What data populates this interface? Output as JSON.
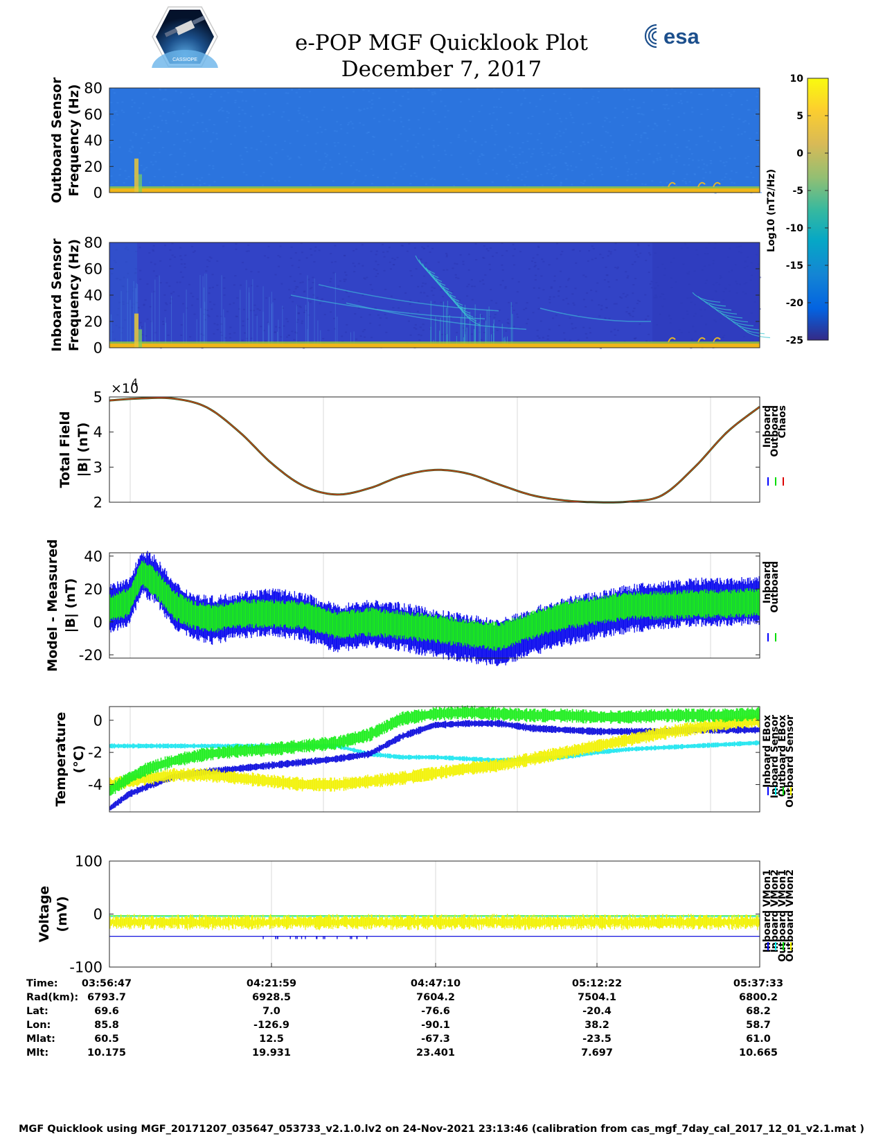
{
  "header": {
    "title": "e-POP MGF Quicklook Plot",
    "date": "December 7, 2017",
    "mission_logo_text": "CASSIOPE",
    "agency_logo_text": "esa"
  },
  "colorbar": {
    "label": "Log10 (nT2/Hz)",
    "ticks": [
      10,
      5,
      0,
      -5,
      -10,
      -15,
      -20,
      -25
    ],
    "range": [
      -25,
      10
    ]
  },
  "chart_data": [
    {
      "id": "outboard-spectrogram",
      "type": "heatmap",
      "ylabel": [
        "Outboard Sensor",
        "Frequency (Hz)"
      ],
      "ylim": [
        0,
        80
      ],
      "yticks": [
        0,
        20,
        40,
        60,
        80
      ],
      "background_level": -15
    },
    {
      "id": "inboard-spectrogram",
      "type": "heatmap",
      "ylabel": [
        "Inboard Sensor",
        "Frequency (Hz)"
      ],
      "ylim": [
        0,
        80
      ],
      "yticks": [
        0,
        20,
        40,
        60,
        80
      ],
      "background_level": -21
    },
    {
      "id": "total-field",
      "type": "line",
      "ylabel": [
        "Total Field",
        "|B| (nT)"
      ],
      "ylim": [
        2,
        5
      ],
      "yticks": [
        2,
        3,
        4,
        5
      ],
      "exponent_label": "×10",
      "exponent_power": "4",
      "legend": [
        "Inboard",
        "Outboard",
        "Chaos"
      ],
      "legend_colors": [
        "#0000ff",
        "#00dd00",
        "#dd0000"
      ],
      "x": [
        0,
        0.05,
        0.1,
        0.15,
        0.2,
        0.25,
        0.3,
        0.35,
        0.4,
        0.45,
        0.5,
        0.55,
        0.6,
        0.65,
        0.7,
        0.75,
        0.8,
        0.85,
        0.9,
        0.95,
        1.0
      ],
      "series": [
        {
          "name": "Chaos",
          "values": [
            4.9,
            4.96,
            4.95,
            4.7,
            4.0,
            3.1,
            2.45,
            2.22,
            2.4,
            2.75,
            2.92,
            2.82,
            2.5,
            2.2,
            2.05,
            2.0,
            2.02,
            2.2,
            3.0,
            4.0,
            4.72
          ]
        }
      ]
    },
    {
      "id": "model-measured",
      "type": "line",
      "ylabel": [
        "Model - Measured",
        "|B| (nT)"
      ],
      "ylim": [
        -22,
        42
      ],
      "yticks": [
        -20,
        0,
        20,
        40
      ],
      "legend": [
        "Inboard",
        "Outboard"
      ],
      "legend_colors": [
        "#0000ff",
        "#00dd00"
      ],
      "x": [
        0,
        0.03,
        0.05,
        0.07,
        0.1,
        0.13,
        0.16,
        0.2,
        0.25,
        0.3,
        0.35,
        0.4,
        0.45,
        0.5,
        0.55,
        0.6,
        0.65,
        0.7,
        0.75,
        0.8,
        0.85,
        0.9,
        0.95,
        1.0
      ],
      "series": [
        {
          "name": "Inboard",
          "values": [
            8,
            12,
            30,
            26,
            10,
            3,
            1,
            4,
            6,
            3,
            -4,
            -1,
            -3,
            -7,
            -10,
            -13,
            -6,
            0,
            4,
            8,
            10,
            12,
            12,
            13
          ]
        },
        {
          "name": "Outboard",
          "values": [
            8,
            12,
            30,
            24,
            10,
            4,
            2,
            5,
            5,
            4,
            -2,
            0,
            -2,
            -4,
            -7,
            -9,
            -2,
            4,
            7,
            10,
            10,
            11,
            11,
            12
          ]
        }
      ]
    },
    {
      "id": "temperature",
      "type": "line",
      "ylabel": [
        "Temperature",
        "(°C)"
      ],
      "ylim": [
        -5.7,
        0.85
      ],
      "yticks": [
        -4,
        -2,
        0
      ],
      "legend": [
        "Inboard EBox",
        "Inboard Sensor",
        "Outboard EBox",
        "Outboard Sensor"
      ],
      "legend_colors": [
        "#0000ff",
        "#00ffff",
        "#00dd00",
        "#ffff00"
      ],
      "x": [
        0,
        0.03,
        0.06,
        0.1,
        0.15,
        0.2,
        0.25,
        0.3,
        0.35,
        0.4,
        0.45,
        0.5,
        0.55,
        0.6,
        0.65,
        0.7,
        0.75,
        0.8,
        0.85,
        0.9,
        0.95,
        1.0
      ],
      "series": [
        {
          "name": "Inboard EBox",
          "values": [
            -5.5,
            -4.6,
            -4.1,
            -3.5,
            -3.2,
            -3.0,
            -2.8,
            -2.6,
            -2.4,
            -2.1,
            -1.0,
            -0.3,
            -0.2,
            -0.2,
            -0.5,
            -0.6,
            -0.7,
            -0.7,
            -0.7,
            -0.6,
            -0.6,
            -0.6
          ]
        },
        {
          "name": "Inboard Sensor",
          "values": [
            -1.6,
            -1.6,
            -1.6,
            -1.6,
            -1.6,
            -1.6,
            -1.6,
            -1.6,
            -1.6,
            -2.1,
            -2.3,
            -2.3,
            -2.4,
            -2.5,
            -2.4,
            -2.3,
            -2.0,
            -1.8,
            -1.7,
            -1.6,
            -1.5,
            -1.4
          ]
        },
        {
          "name": "Outboard EBox",
          "values": [
            -4.4,
            -3.6,
            -3.0,
            -2.5,
            -2.1,
            -1.9,
            -1.8,
            -1.6,
            -1.4,
            -0.9,
            0.1,
            0.4,
            0.5,
            0.4,
            0.3,
            0.3,
            0.2,
            0.2,
            0.3,
            0.3,
            0.3,
            0.4
          ]
        },
        {
          "name": "Outboard Sensor",
          "values": [
            -4.0,
            -3.8,
            -3.6,
            -3.4,
            -3.4,
            -3.6,
            -3.8,
            -4.0,
            -4.0,
            -3.8,
            -3.6,
            -3.3,
            -3.0,
            -2.8,
            -2.4,
            -2.0,
            -1.6,
            -1.2,
            -0.8,
            -0.5,
            -0.2,
            0.0
          ]
        }
      ]
    },
    {
      "id": "voltage",
      "type": "line",
      "ylabel": [
        "Voltage",
        "(mV)"
      ],
      "ylim": [
        -100,
        100
      ],
      "yticks": [
        -100,
        0,
        100
      ],
      "legend": [
        "Inboard VMon1",
        "Inboard VMon2",
        "Outboard VMon1",
        "Outboard VMon2"
      ],
      "legend_colors": [
        "#0000ff",
        "#00ffff",
        "#00dd00",
        "#ffff00"
      ],
      "series": [
        {
          "name": "Inboard VMon1",
          "values": [
            -42,
            -42
          ]
        },
        {
          "name": "Inboard VMon2",
          "values": [
            -5,
            -5
          ]
        },
        {
          "name": "Outboard VMon1",
          "values": [
            -3,
            -3
          ]
        },
        {
          "name": "Outboard VMon2",
          "values": [
            -15,
            -15
          ]
        }
      ]
    }
  ],
  "ephemeris": {
    "row_labels": [
      "Time:",
      "Rad(km):",
      "Lat:",
      "Lon:",
      "Mlat:",
      "Mlt:"
    ],
    "columns": [
      [
        "03:56:47",
        "6793.7",
        "69.6",
        "85.8",
        "60.5",
        "10.175"
      ],
      [
        "04:21:59",
        "6928.5",
        "7.0",
        "-126.9",
        "12.5",
        "19.931"
      ],
      [
        "04:47:10",
        "7604.2",
        "-76.6",
        "-90.1",
        "-67.3",
        "23.401"
      ],
      [
        "05:12:22",
        "7504.1",
        "-20.4",
        "38.2",
        "-23.5",
        "7.697"
      ],
      [
        "05:37:33",
        "6800.2",
        "68.2",
        "58.7",
        "61.0",
        "10.665"
      ]
    ]
  },
  "footer": "MGF Quicklook using MGF_20171207_035647_053733_v2.1.0.lv2 on 24-Nov-2021 23:13:46 (calibration from cas_mgf_7day_cal_2017_12_01_v2.1.mat )"
}
